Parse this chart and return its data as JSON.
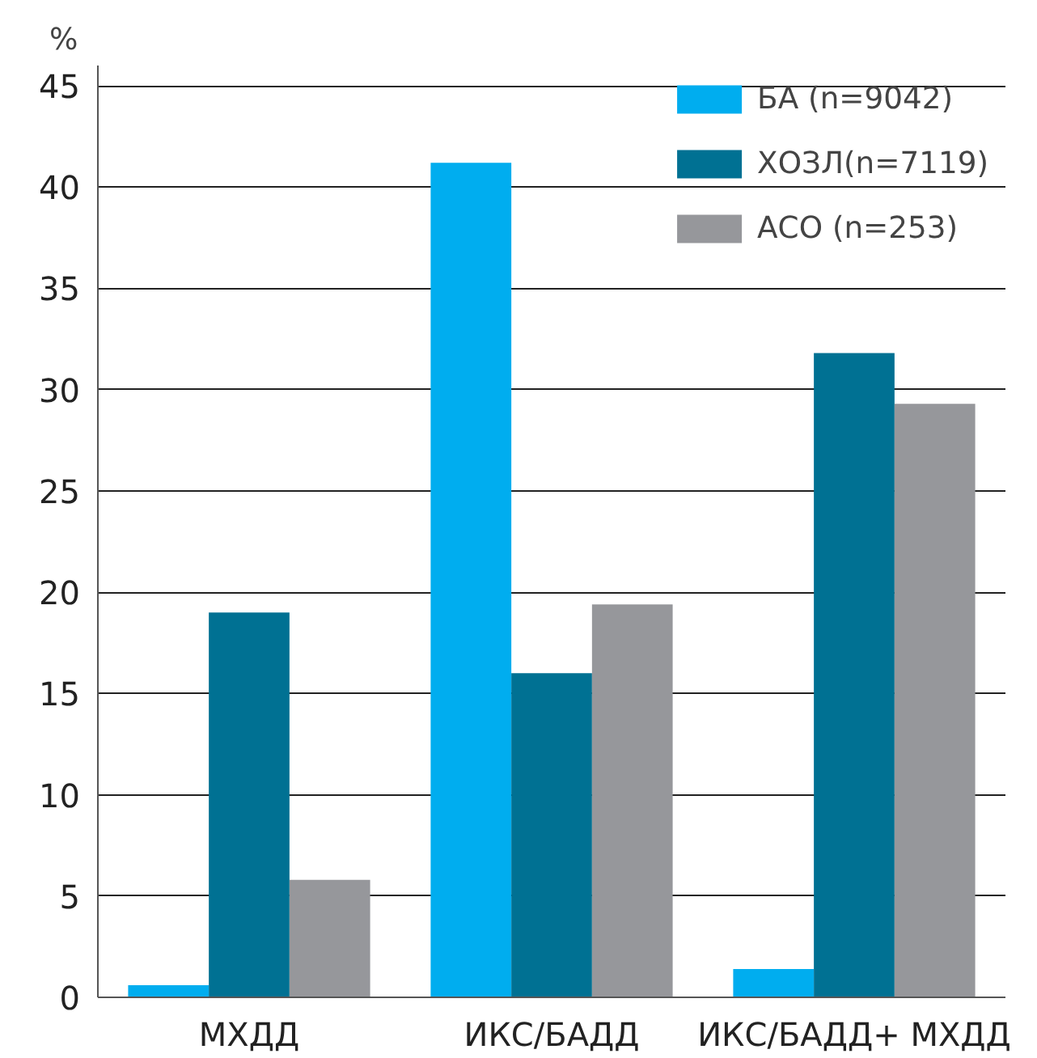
{
  "chart_data": {
    "type": "bar",
    "ylabel": "%",
    "categories": [
      "МХДД",
      "ИКС/БАДД",
      "ИКС/БАДД+ МХДД"
    ],
    "series": [
      {
        "name": "БА (n=9042)",
        "color": "#00adef",
        "values": [
          0.6,
          41.2,
          1.4
        ]
      },
      {
        "name": "ХОЗЛ(n=7119)",
        "color": "#007193",
        "values": [
          19.0,
          16.0,
          31.8
        ]
      },
      {
        "name": "АСО (n=253)",
        "color": "#96979b",
        "values": [
          5.8,
          19.4,
          29.3
        ]
      }
    ],
    "ylim": [
      0,
      46
    ],
    "yticks": [
      0,
      5,
      10,
      15,
      20,
      25,
      30,
      35,
      40,
      45
    ],
    "grid": "y",
    "legend": "top right"
  }
}
